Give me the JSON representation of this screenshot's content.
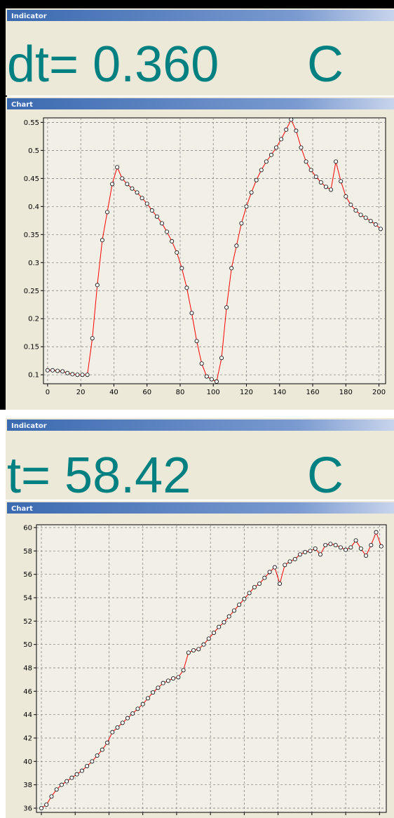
{
  "indicators": [
    {
      "title": "Indicator",
      "text": "dt= 0.360",
      "unit": "C"
    },
    {
      "title": "Indicator",
      "text": "t= 58.42",
      "unit": "C"
    }
  ],
  "chart_data": [
    {
      "type": "line",
      "title": "Chart",
      "x": [
        0,
        3,
        6,
        9,
        12,
        15,
        18,
        21,
        24,
        27,
        30,
        33,
        36,
        39,
        42,
        45,
        48,
        51,
        54,
        57,
        60,
        63,
        66,
        69,
        72,
        75,
        78,
        81,
        84,
        87,
        90,
        93,
        96,
        99,
        102,
        105,
        108,
        111,
        114,
        117,
        120,
        123,
        126,
        129,
        132,
        135,
        138,
        141,
        144,
        147,
        150,
        153,
        156,
        159,
        162,
        165,
        168,
        171,
        174,
        177,
        180,
        183,
        186,
        189,
        192,
        195,
        198,
        201
      ],
      "series": [
        {
          "color": "#ff0000",
          "values": [
            0.108,
            0.108,
            0.107,
            0.106,
            0.103,
            0.101,
            0.1,
            0.1,
            0.1,
            0.165,
            0.26,
            0.34,
            0.39,
            0.44,
            0.47,
            0.45,
            0.44,
            0.432,
            0.425,
            0.415,
            0.405,
            0.393,
            0.382,
            0.37,
            0.355,
            0.338,
            0.318,
            0.29,
            0.255,
            0.21,
            0.16,
            0.12,
            0.097,
            0.092,
            0.088,
            0.13,
            0.22,
            0.29,
            0.33,
            0.37,
            0.4,
            0.425,
            0.447,
            0.465,
            0.48,
            0.492,
            0.505,
            0.52,
            0.537,
            0.555,
            0.535,
            0.505,
            0.48,
            0.465,
            0.453,
            0.443,
            0.435,
            0.43,
            0.48,
            0.445,
            0.418,
            0.403,
            0.393,
            0.385,
            0.38,
            0.374,
            0.368,
            0.36
          ]
        }
      ],
      "xlim": [
        -2.5,
        204
      ],
      "ylim": [
        0.084,
        0.558
      ],
      "xticks": [
        0,
        20,
        40,
        60,
        80,
        100,
        120,
        140,
        160,
        180,
        200
      ],
      "yticks": [
        0.1,
        0.15,
        0.2,
        0.25,
        0.3,
        0.35,
        0.4,
        0.45,
        0.5,
        0.55
      ],
      "grid": true
    },
    {
      "type": "line",
      "title": "Chart",
      "x": [
        0,
        3,
        6,
        9,
        12,
        15,
        18,
        21,
        24,
        27,
        30,
        33,
        36,
        39,
        42,
        45,
        48,
        51,
        54,
        57,
        60,
        63,
        66,
        69,
        72,
        75,
        78,
        81,
        84,
        87,
        90,
        93,
        96,
        99,
        102,
        105,
        108,
        111,
        114,
        117,
        120,
        123,
        126,
        129,
        132,
        135,
        138,
        141,
        144,
        147,
        150,
        153,
        156,
        159,
        162,
        165,
        168,
        171,
        174,
        177,
        180,
        183,
        186,
        189,
        192,
        195,
        198,
        201
      ],
      "series": [
        {
          "color": "#ff0000",
          "values": [
            36.0,
            36.3,
            37.0,
            37.6,
            38.0,
            38.3,
            38.6,
            38.9,
            39.2,
            39.6,
            40.0,
            40.5,
            41.0,
            41.6,
            42.5,
            42.9,
            43.3,
            43.7,
            44.1,
            44.5,
            44.9,
            45.4,
            45.9,
            46.3,
            46.7,
            46.9,
            47.1,
            47.2,
            47.8,
            49.3,
            49.5,
            49.6,
            50.0,
            50.5,
            51.0,
            51.5,
            51.9,
            52.4,
            52.9,
            53.4,
            53.9,
            54.4,
            54.9,
            55.2,
            55.7,
            56.2,
            56.6,
            55.2,
            56.8,
            57.1,
            57.3,
            57.7,
            57.9,
            58.0,
            58.2,
            57.7,
            58.5,
            58.6,
            58.5,
            58.3,
            58.1,
            58.3,
            58.9,
            58.2,
            57.6,
            58.5,
            59.6,
            58.4
          ]
        }
      ],
      "xlim": [
        -2.9,
        204
      ],
      "ylim": [
        35.64,
        60.24
      ],
      "xticks": [
        0,
        20,
        40,
        60,
        80,
        100,
        120,
        140,
        160,
        180,
        200
      ],
      "yticks": [
        36,
        38,
        40,
        42,
        44,
        46,
        48,
        50,
        52,
        54,
        56,
        58,
        60
      ],
      "grid": true
    }
  ]
}
